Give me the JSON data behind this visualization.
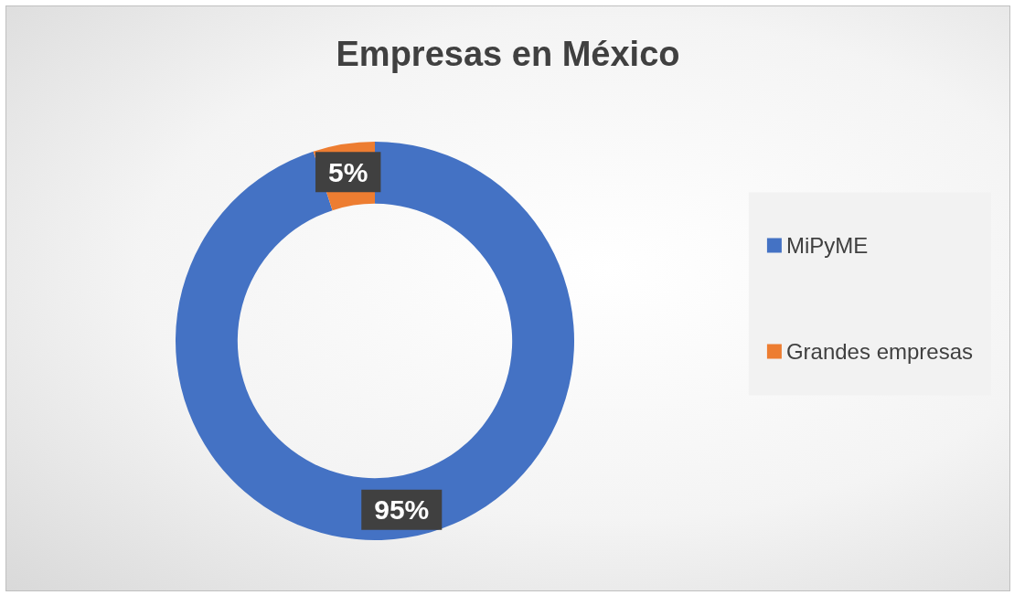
{
  "chart_data": {
    "type": "donut",
    "title": "Empresas en México",
    "categories": [
      "MiPyME",
      "Grandes empresas"
    ],
    "values": [
      95,
      5
    ],
    "colors": [
      "#4472c4",
      "#ed7d31"
    ],
    "value_labels": [
      "95%",
      "5%"
    ],
    "legend": "right"
  }
}
